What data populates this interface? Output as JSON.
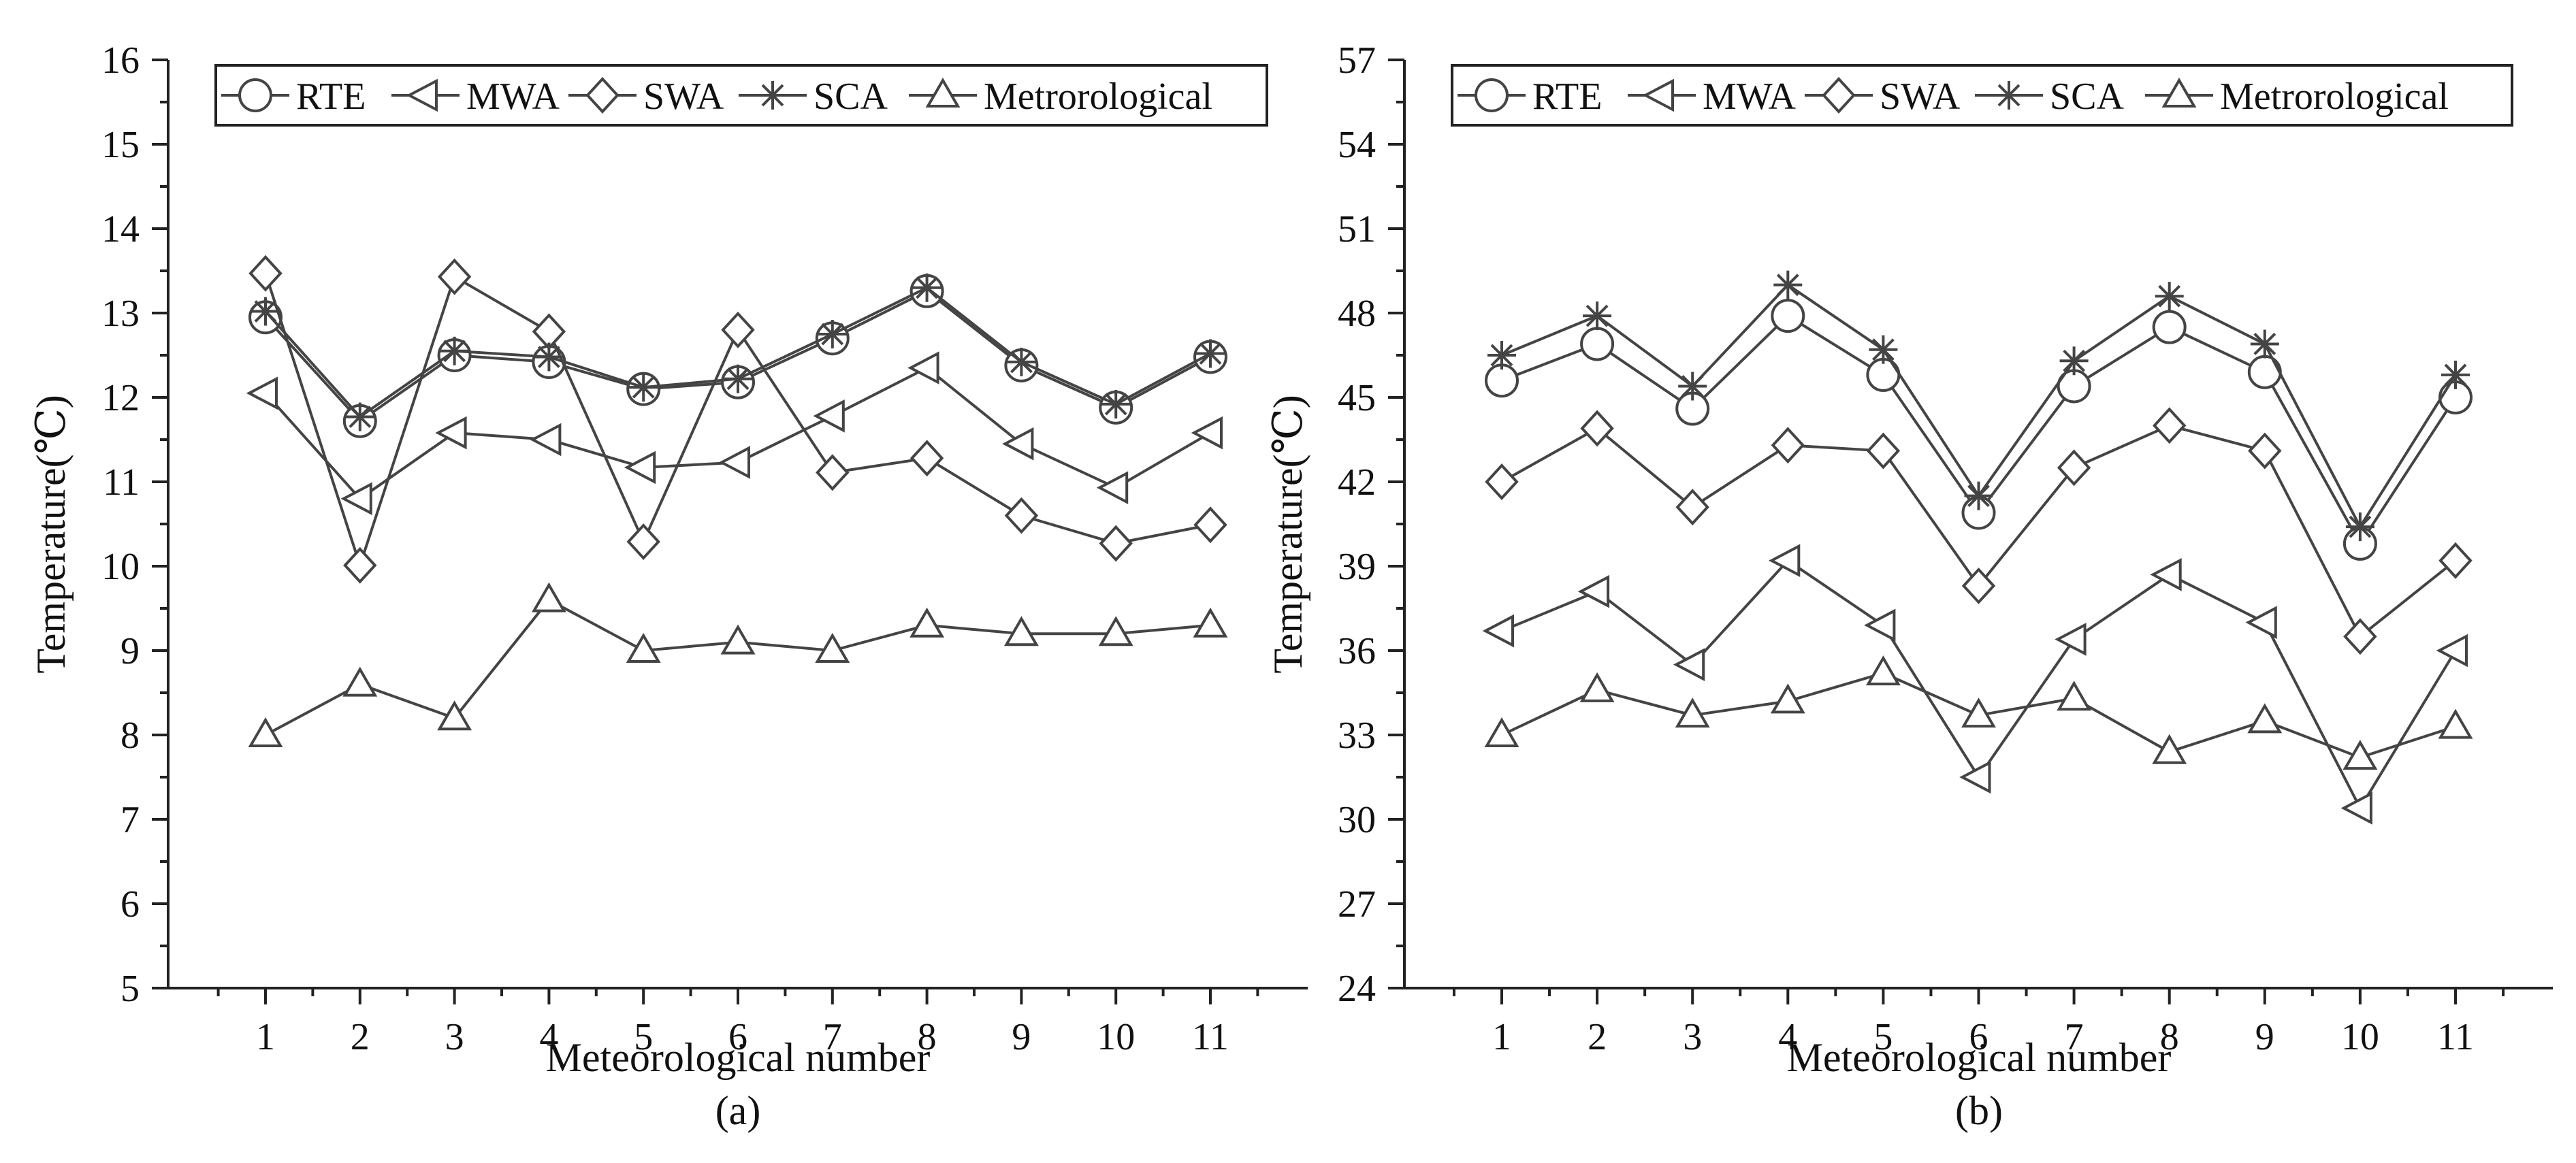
{
  "chart_data": [
    {
      "id": "a",
      "type": "line",
      "caption": "(a)",
      "xlabel": "Meteorological number",
      "ylabel": "Temperature(℃)",
      "x": [
        1,
        2,
        3,
        4,
        5,
        6,
        7,
        8,
        9,
        10,
        11
      ],
      "xticks": [
        "1",
        "2",
        "3",
        "4",
        "5",
        "6",
        "7",
        "8",
        "9",
        "10",
        "11"
      ],
      "ylim": [
        5,
        16
      ],
      "yticks": [
        "5",
        "6",
        "7",
        "8",
        "9",
        "10",
        "11",
        "12",
        "13",
        "14",
        "15",
        "16"
      ],
      "legend_position": "top",
      "series": [
        {
          "name": "RTE",
          "marker": "circle",
          "values": [
            12.95,
            11.72,
            12.5,
            12.42,
            12.1,
            12.18,
            12.7,
            13.26,
            12.38,
            11.88,
            12.48
          ]
        },
        {
          "name": "MWA",
          "marker": "triangle-left",
          "values": [
            12.05,
            10.8,
            11.58,
            11.5,
            11.17,
            11.23,
            11.78,
            12.35,
            11.45,
            10.93,
            11.58
          ]
        },
        {
          "name": "SWA",
          "marker": "diamond",
          "values": [
            13.47,
            10.01,
            13.43,
            12.78,
            10.29,
            12.8,
            11.11,
            11.28,
            10.6,
            10.27,
            10.49
          ]
        },
        {
          "name": "SCA",
          "marker": "asterisk",
          "values": [
            13.02,
            11.77,
            12.55,
            12.48,
            12.12,
            12.22,
            12.75,
            13.3,
            12.42,
            11.92,
            12.52
          ]
        },
        {
          "name": "Metrorological",
          "marker": "triangle-up",
          "values": [
            8.0,
            8.6,
            8.2,
            9.6,
            9.0,
            9.1,
            9.0,
            9.3,
            9.2,
            9.2,
            9.3
          ]
        }
      ]
    },
    {
      "id": "b",
      "type": "line",
      "caption": "(b)",
      "xlabel": "Meteorological number",
      "ylabel": "Temperature(℃)",
      "x": [
        1,
        2,
        3,
        4,
        5,
        6,
        7,
        8,
        9,
        10,
        11
      ],
      "xticks": [
        "1",
        "2",
        "3",
        "4",
        "5",
        "6",
        "7",
        "8",
        "9",
        "10",
        "11"
      ],
      "ylim": [
        24,
        57
      ],
      "yticks": [
        "24",
        "27",
        "30",
        "33",
        "36",
        "39",
        "42",
        "45",
        "48",
        "51",
        "54",
        "57"
      ],
      "legend_position": "top",
      "series": [
        {
          "name": "RTE",
          "marker": "circle",
          "values": [
            45.6,
            46.9,
            44.6,
            47.9,
            45.8,
            40.9,
            45.4,
            47.5,
            45.9,
            39.8,
            45.0
          ]
        },
        {
          "name": "MWA",
          "marker": "triangle-left",
          "values": [
            36.7,
            38.1,
            35.5,
            39.2,
            36.9,
            31.5,
            36.4,
            38.7,
            37.0,
            30.4,
            36.0
          ]
        },
        {
          "name": "SWA",
          "marker": "diamond",
          "values": [
            42.0,
            43.9,
            41.1,
            43.3,
            43.1,
            38.3,
            42.5,
            44.0,
            43.1,
            36.5,
            39.2
          ]
        },
        {
          "name": "SCA",
          "marker": "asterisk",
          "values": [
            46.5,
            47.9,
            45.4,
            49.0,
            46.7,
            41.5,
            46.3,
            48.6,
            46.9,
            40.4,
            45.8
          ]
        },
        {
          "name": "Metrorological",
          "marker": "triangle-up",
          "values": [
            33.0,
            34.6,
            33.7,
            34.2,
            35.2,
            33.7,
            34.3,
            32.4,
            33.5,
            32.2,
            33.3
          ]
        }
      ]
    }
  ]
}
